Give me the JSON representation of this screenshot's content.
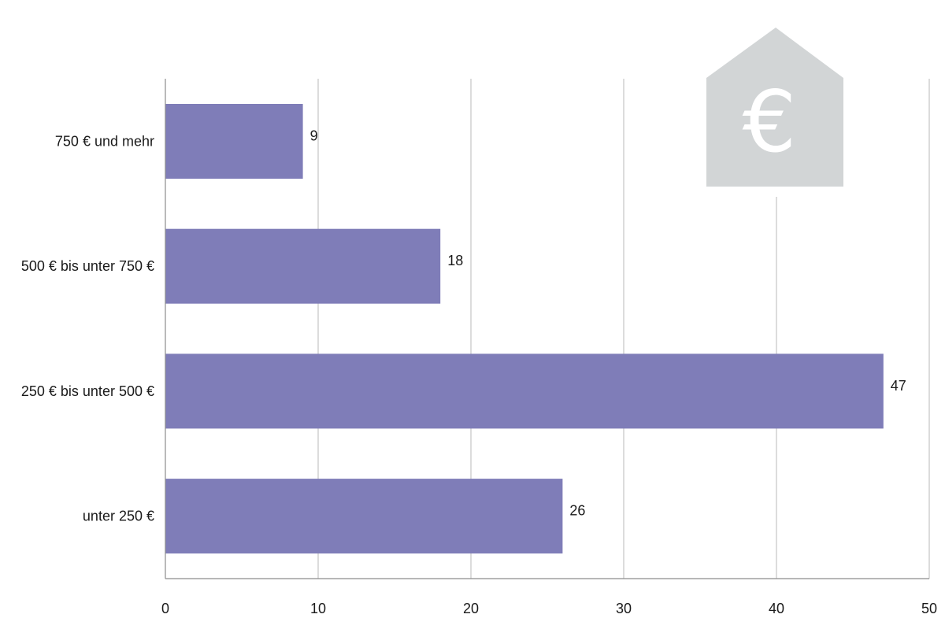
{
  "chart_data": {
    "type": "bar",
    "orientation": "horizontal",
    "title": "",
    "xlabel": "",
    "ylabel": "",
    "categories": [
      "750 € und mehr",
      "500 € bis unter 750 €",
      "250 € bis unter 500 €",
      "unter 250 €"
    ],
    "values": [
      9,
      18,
      47,
      26
    ],
    "data_labels": [
      "9",
      "18",
      "47",
      "26"
    ],
    "xlim": [
      0,
      50
    ],
    "x_ticks": [
      0,
      10,
      20,
      30,
      40,
      50
    ],
    "grid": "vertical",
    "legend": "none",
    "colors": {
      "bar": "#7f7db8",
      "grid": "#b8b8b8",
      "axis": "#8c8c8c",
      "icon_background": "#d2d5d6",
      "icon_symbol": "#ffffff"
    }
  },
  "icon": {
    "name": "house-euro-icon",
    "symbol": "€"
  }
}
